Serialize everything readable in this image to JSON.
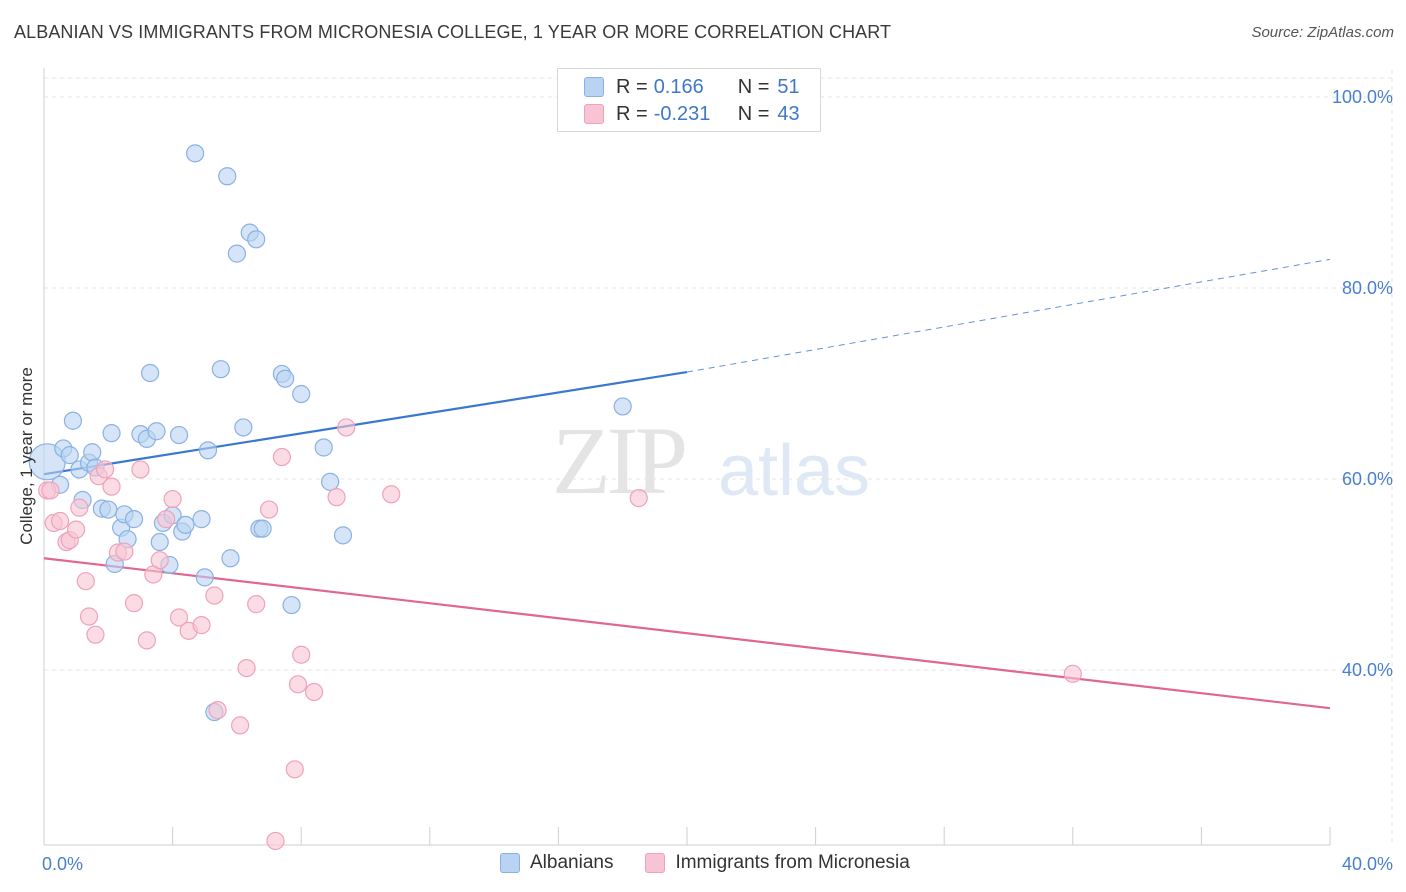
{
  "title": "ALBANIAN VS IMMIGRANTS FROM MICRONESIA COLLEGE, 1 YEAR OR MORE CORRELATION CHART",
  "source": "Source: ZipAtlas.com",
  "watermark": {
    "zip": "ZIP",
    "atlas": "atlas"
  },
  "colors": {
    "blue_fill": "#b9d3f2",
    "blue_stroke": "#8ab1e3",
    "blue_line": "#3a78cf",
    "pink_fill": "#f8c4d4",
    "pink_stroke": "#eea2bb",
    "pink_line": "#e0678f",
    "grid": "#e6e6e6",
    "tick_text": "#4a7fcf"
  },
  "legend": {
    "rows": [
      {
        "r_label": "R =",
        "r_value": "0.166",
        "n_label": "N =",
        "n_value": "51"
      },
      {
        "r_label": "R =",
        "r_value": "-0.231",
        "n_label": "N =",
        "n_value": "43"
      }
    ]
  },
  "chart_data": {
    "type": "scatter",
    "title": "ALBANIAN VS IMMIGRANTS FROM MICRONESIA COLLEGE, 1 YEAR OR MORE CORRELATION CHART",
    "xlabel": "",
    "ylabel": "College, 1 year or more",
    "xlim": [
      0,
      40
    ],
    "ylim": [
      20,
      102
    ],
    "x_tick_labels": [
      {
        "value": 0,
        "label": "0.0%"
      },
      {
        "value": 40,
        "label": "40.0%"
      }
    ],
    "y_tick_labels": [
      {
        "value": 40,
        "label": "40.0%"
      },
      {
        "value": 60,
        "label": "60.0%"
      },
      {
        "value": 80,
        "label": "80.0%"
      },
      {
        "value": 100,
        "label": "100.0%"
      }
    ],
    "x_minor_ticks": [
      0,
      4,
      8,
      12,
      16,
      20,
      24,
      28,
      32,
      36,
      40
    ],
    "grid": true,
    "legend_position": "top-center",
    "series": [
      {
        "name": "Albanians",
        "color": "#b9d3f2",
        "trend": {
          "x0": 0,
          "y0": 60.5,
          "x1": 20,
          "y1": 71.2,
          "dashed_to_x": 40,
          "dashed_to_y": 83.0
        },
        "points": [
          [
            0.1,
            61.8
          ],
          [
            0.5,
            59.4
          ],
          [
            0.6,
            63.2
          ],
          [
            0.8,
            62.5
          ],
          [
            0.9,
            66.1
          ],
          [
            1.1,
            61.0
          ],
          [
            1.2,
            57.8
          ],
          [
            1.4,
            61.7
          ],
          [
            1.5,
            62.8
          ],
          [
            1.6,
            61.2
          ],
          [
            1.8,
            56.9
          ],
          [
            2.0,
            56.8
          ],
          [
            2.1,
            64.8
          ],
          [
            2.2,
            51.1
          ],
          [
            2.4,
            54.9
          ],
          [
            2.5,
            56.3
          ],
          [
            2.6,
            53.7
          ],
          [
            2.8,
            55.8
          ],
          [
            3.0,
            64.7
          ],
          [
            3.2,
            64.2
          ],
          [
            3.3,
            71.1
          ],
          [
            3.5,
            65.0
          ],
          [
            3.6,
            53.4
          ],
          [
            3.7,
            55.4
          ],
          [
            3.9,
            51.0
          ],
          [
            4.0,
            56.2
          ],
          [
            4.2,
            64.6
          ],
          [
            4.3,
            54.5
          ],
          [
            4.4,
            55.2
          ],
          [
            4.7,
            94.1
          ],
          [
            4.9,
            55.8
          ],
          [
            5.0,
            49.7
          ],
          [
            5.1,
            63.0
          ],
          [
            5.3,
            35.6
          ],
          [
            5.5,
            71.5
          ],
          [
            5.7,
            91.7
          ],
          [
            5.8,
            51.7
          ],
          [
            6.0,
            83.6
          ],
          [
            6.2,
            65.4
          ],
          [
            6.4,
            85.8
          ],
          [
            6.6,
            85.1
          ],
          [
            6.7,
            54.8
          ],
          [
            7.4,
            71.0
          ],
          [
            7.5,
            70.5
          ],
          [
            7.7,
            46.8
          ],
          [
            8.0,
            68.9
          ],
          [
            8.7,
            63.3
          ],
          [
            8.9,
            59.7
          ],
          [
            9.3,
            54.1
          ],
          [
            18.0,
            67.6
          ],
          [
            6.8,
            54.8
          ]
        ]
      },
      {
        "name": "Immigrants from Micronesia",
        "color": "#f8c4d4",
        "trend": {
          "x0": 0,
          "y0": 51.7,
          "x1": 40,
          "y1": 36.0
        },
        "points": [
          [
            0.1,
            58.8
          ],
          [
            0.3,
            55.4
          ],
          [
            0.5,
            55.6
          ],
          [
            0.7,
            53.4
          ],
          [
            0.8,
            53.6
          ],
          [
            1.0,
            54.7
          ],
          [
            1.1,
            57.0
          ],
          [
            1.3,
            49.3
          ],
          [
            1.4,
            45.6
          ],
          [
            1.6,
            43.7
          ],
          [
            1.7,
            60.3
          ],
          [
            1.9,
            61.0
          ],
          [
            2.1,
            59.2
          ],
          [
            2.3,
            52.3
          ],
          [
            2.5,
            52.4
          ],
          [
            2.8,
            47.0
          ],
          [
            3.0,
            61.0
          ],
          [
            3.2,
            43.1
          ],
          [
            3.4,
            50.0
          ],
          [
            3.6,
            51.5
          ],
          [
            3.8,
            55.8
          ],
          [
            4.0,
            57.9
          ],
          [
            4.2,
            45.5
          ],
          [
            4.5,
            44.1
          ],
          [
            4.9,
            44.7
          ],
          [
            5.3,
            47.8
          ],
          [
            5.4,
            35.8
          ],
          [
            6.1,
            34.2
          ],
          [
            6.3,
            40.2
          ],
          [
            6.6,
            46.9
          ],
          [
            7.0,
            56.8
          ],
          [
            7.4,
            62.3
          ],
          [
            7.8,
            29.6
          ],
          [
            7.9,
            38.5
          ],
          [
            8.0,
            41.6
          ],
          [
            8.4,
            37.7
          ],
          [
            9.1,
            58.1
          ],
          [
            9.4,
            65.4
          ],
          [
            10.8,
            58.4
          ],
          [
            18.5,
            58.0
          ],
          [
            32.0,
            39.6
          ],
          [
            7.2,
            22.1
          ],
          [
            0.2,
            58.8
          ]
        ]
      }
    ]
  },
  "bottom_legend": [
    {
      "label": "Albanians"
    },
    {
      "label": "Immigrants from Micronesia"
    }
  ]
}
